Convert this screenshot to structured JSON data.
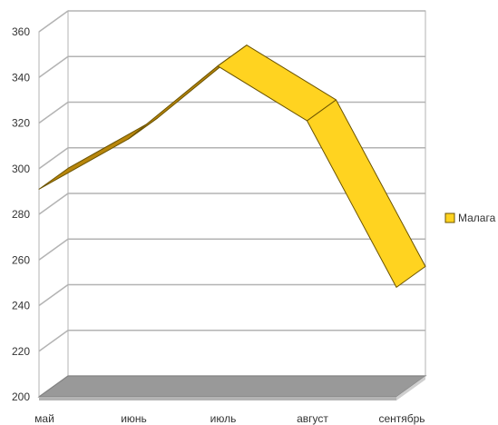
{
  "chart_data": {
    "type": "line",
    "style": "3d-ribbon",
    "categories": [
      "май",
      "июнь",
      "июль",
      "август",
      "сентябрь"
    ],
    "series": [
      {
        "name": "Малага",
        "values": [
          291,
          313,
          345,
          321,
          248
        ]
      }
    ],
    "ylim": [
      200,
      360
    ],
    "yticks": [
      200,
      220,
      240,
      260,
      280,
      300,
      320,
      340,
      360
    ],
    "grid": true,
    "legend": "right",
    "colors": {
      "ribbon_top": "#ffd320",
      "ribbon_side": "#b8860b",
      "ribbon_edge": "#6b5300",
      "floor": "#999999",
      "wall": "#ffffff",
      "grid": "#b3b3b3"
    }
  }
}
